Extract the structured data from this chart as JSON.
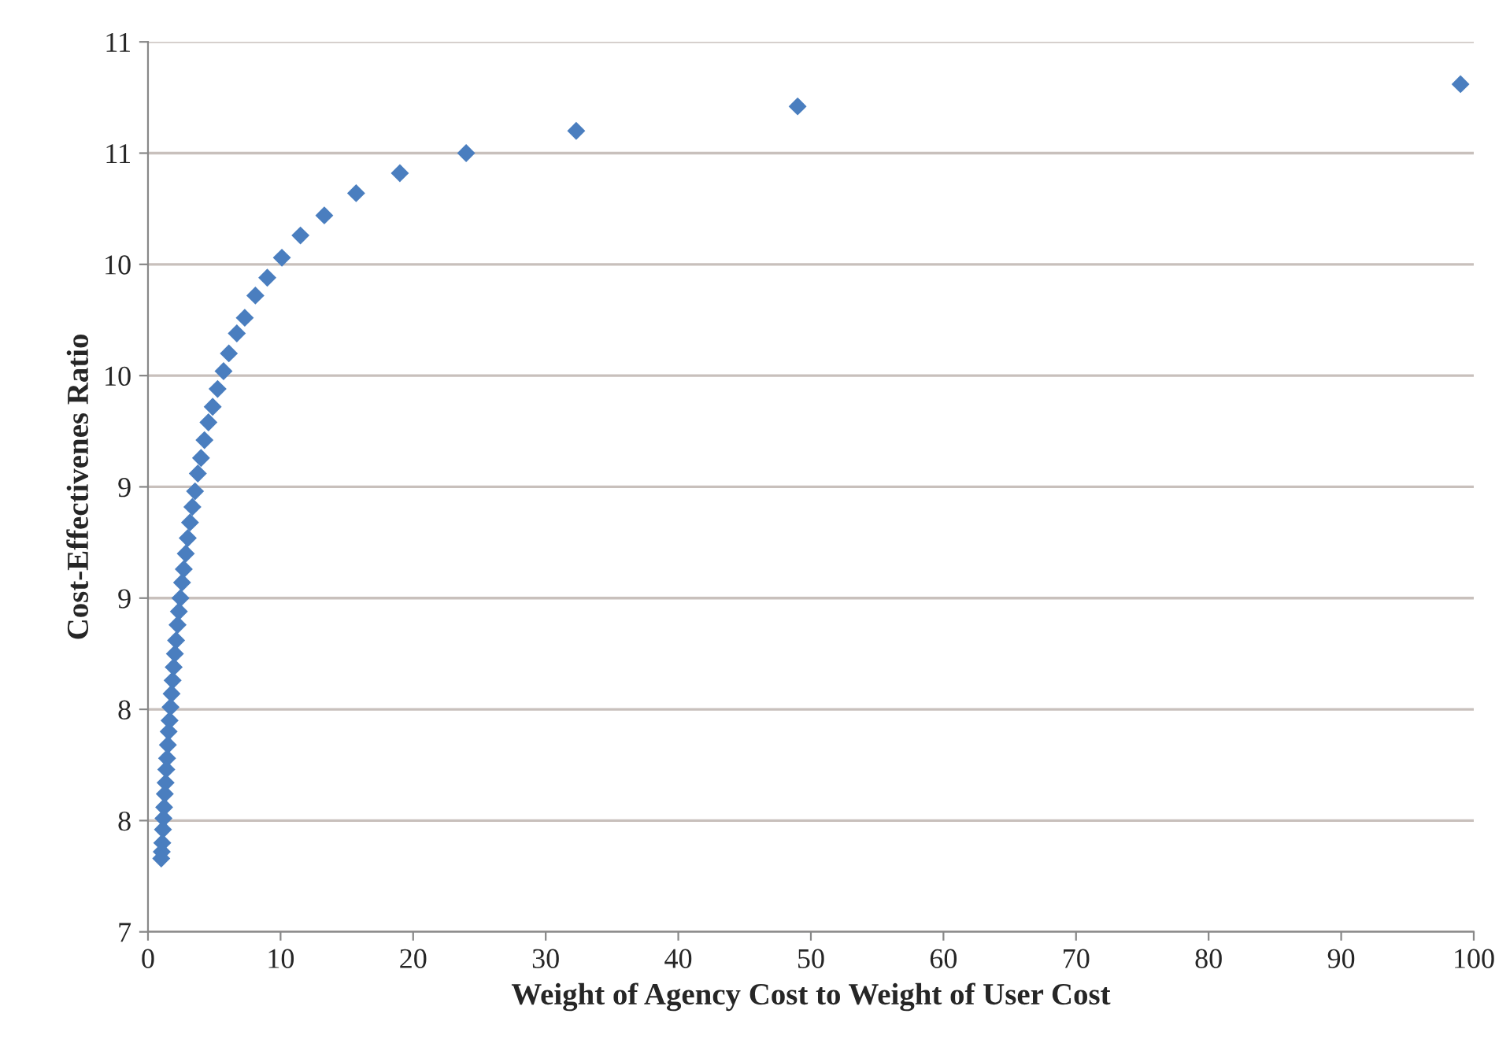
{
  "chart_data": {
    "type": "scatter",
    "xlabel": "Weight of Agency Cost to Weight of User Cost",
    "ylabel": "Cost-Effectivenes Ratio",
    "x": [
      99,
      49,
      32.3,
      24,
      19,
      15.7,
      13.3,
      11.5,
      10.1,
      9,
      8.1,
      7.3,
      6.7,
      6.1,
      5.7,
      5.25,
      4.88,
      4.56,
      4.26,
      4.0,
      3.76,
      3.55,
      3.35,
      3.17,
      3.0,
      2.85,
      2.7,
      2.57,
      2.45,
      2.33,
      2.23,
      2.12,
      2.03,
      1.94,
      1.86,
      1.78,
      1.7,
      1.63,
      1.56,
      1.5,
      1.44,
      1.38,
      1.33,
      1.27,
      1.22,
      1.17,
      1.13,
      1.08,
      1.04,
      1.0
    ],
    "series": [
      {
        "color": "#4a7ebf",
        "values": [
          10.81,
          10.71,
          10.6,
          10.5,
          10.41,
          10.32,
          10.22,
          10.13,
          10.03,
          9.94,
          9.86,
          9.76,
          9.69,
          9.6,
          9.52,
          9.44,
          9.36,
          9.29,
          9.21,
          9.13,
          9.06,
          8.98,
          8.91,
          8.84,
          8.77,
          8.7,
          8.63,
          8.57,
          8.5,
          8.44,
          8.38,
          8.31,
          8.25,
          8.19,
          8.13,
          8.07,
          8.01,
          7.95,
          7.9,
          7.84,
          7.78,
          7.73,
          7.67,
          7.62,
          7.56,
          7.51,
          7.46,
          7.4,
          7.36,
          7.33
        ]
      }
    ],
    "xlim": [
      0,
      100
    ],
    "xticks": [
      0,
      10,
      20,
      30,
      40,
      50,
      60,
      70,
      80,
      90,
      100
    ],
    "ylim": [
      7,
      11
    ],
    "yticks": [
      7,
      {
        "value": 7.5,
        "label": "8"
      },
      8,
      {
        "value": 8.5,
        "label": "9"
      },
      9,
      {
        "value": 9.5,
        "label": "10"
      },
      10,
      {
        "value": 10.5,
        "label": "11"
      },
      11
    ],
    "grid": "y",
    "marker": "diamond",
    "legend": false
  }
}
